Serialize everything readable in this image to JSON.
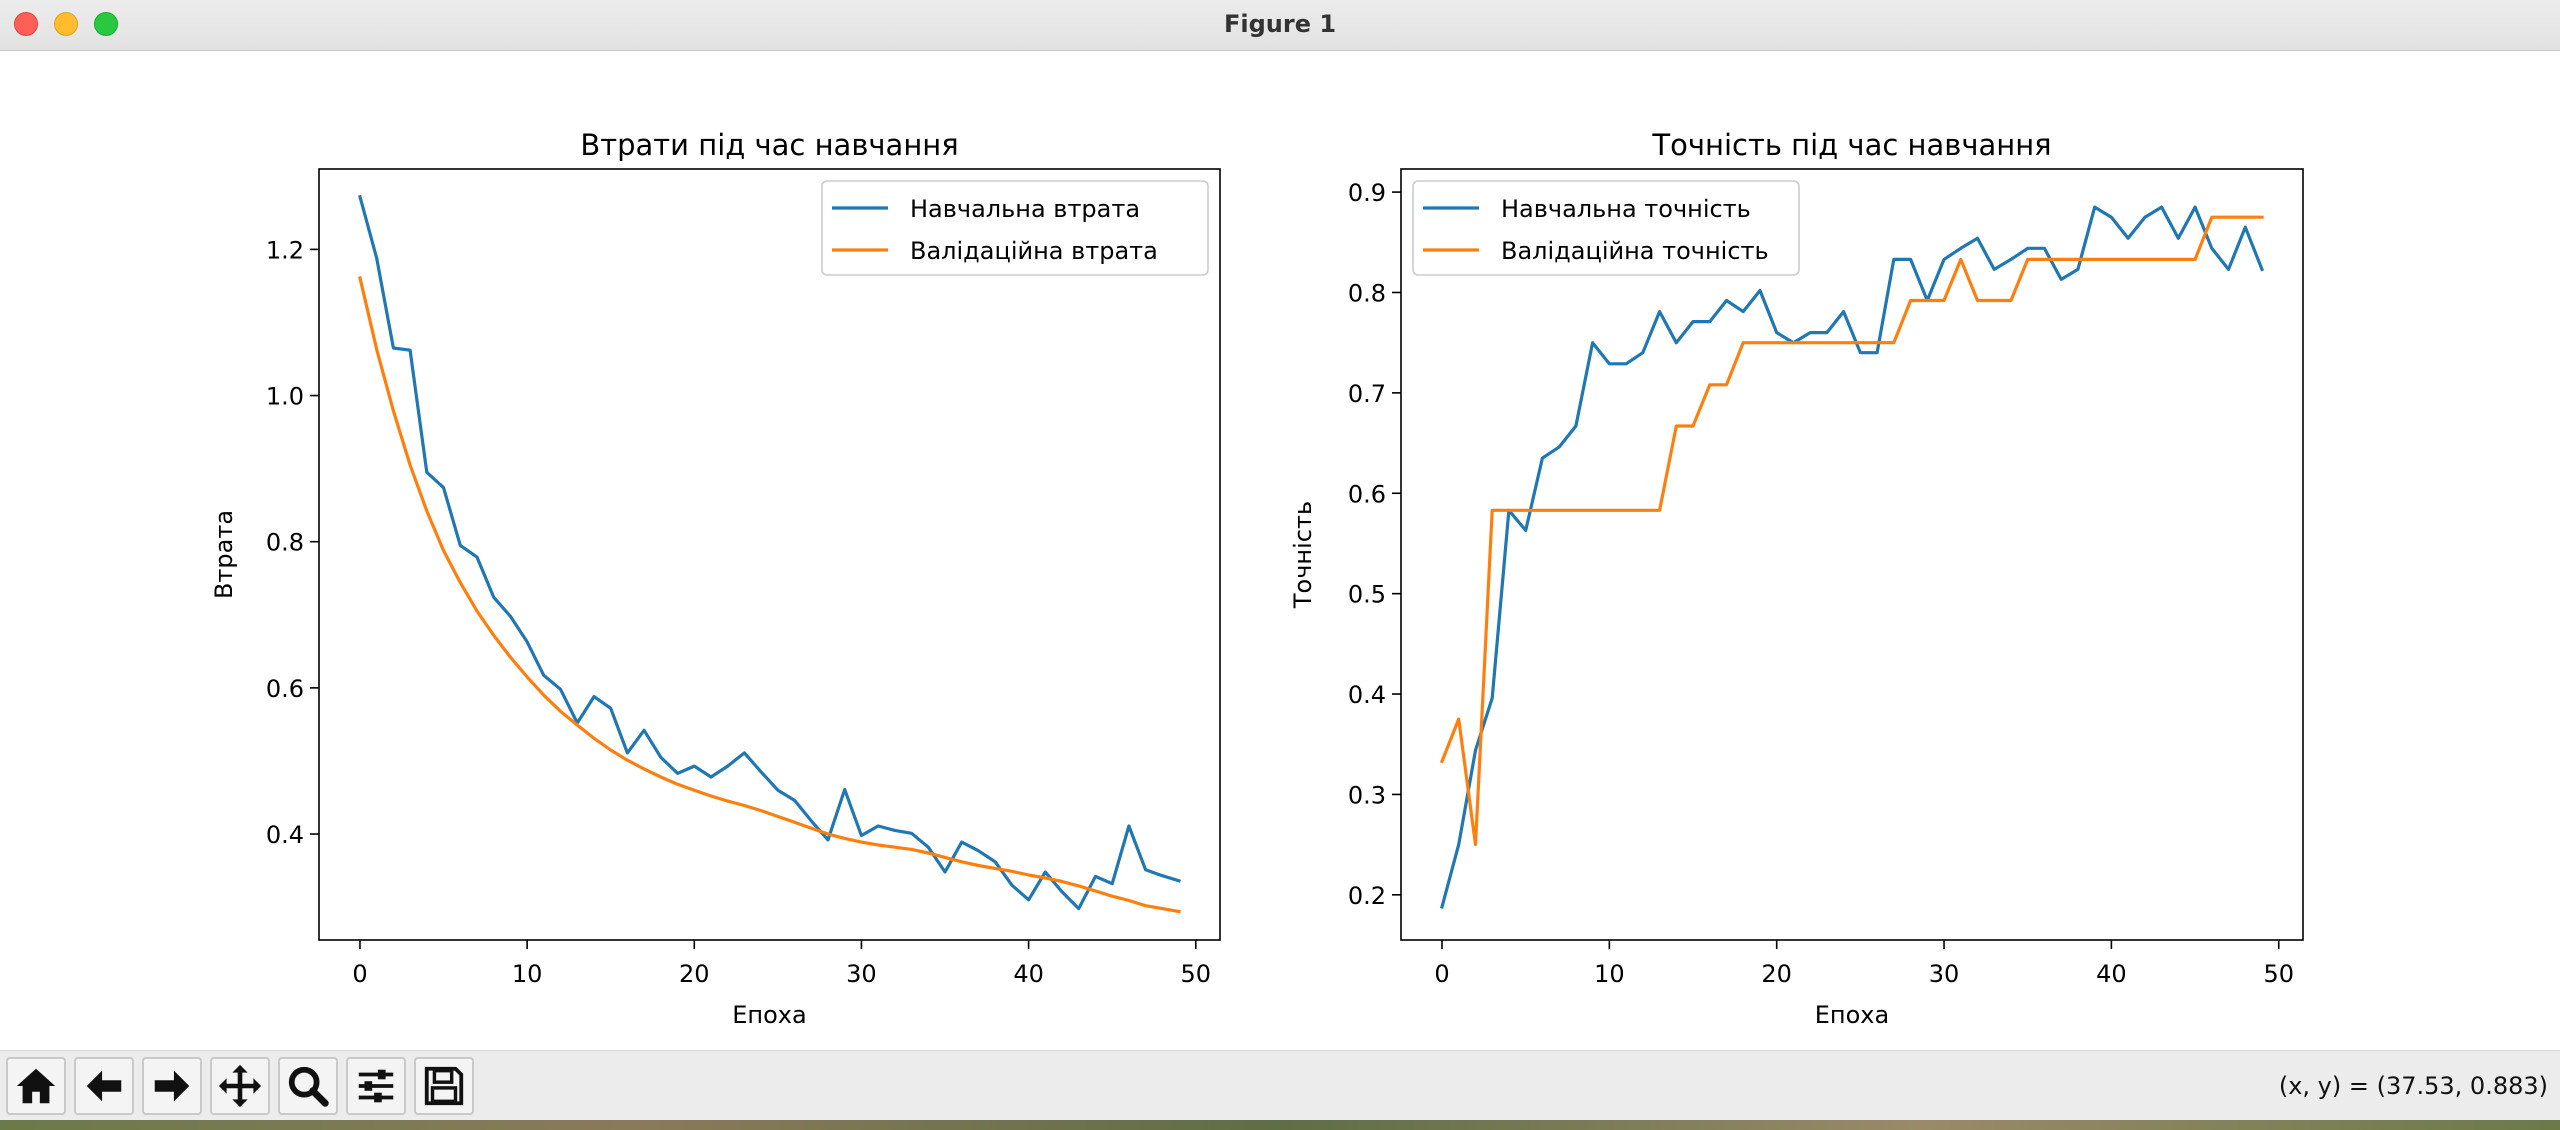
{
  "window": {
    "title": "Figure 1"
  },
  "toolbar": {
    "buttons": [
      {
        "name": "home-button",
        "icon": "home-icon"
      },
      {
        "name": "back-button",
        "icon": "arrow-left-icon"
      },
      {
        "name": "forward-button",
        "icon": "arrow-right-icon"
      },
      {
        "name": "pan-button",
        "icon": "move-icon"
      },
      {
        "name": "zoom-button",
        "icon": "magnifier-icon"
      },
      {
        "name": "configure-subplots-button",
        "icon": "sliders-icon"
      },
      {
        "name": "save-button",
        "icon": "floppy-disk-icon"
      }
    ],
    "coords": "(x, y) = (37.53, 0.883)"
  },
  "colors": {
    "train": "#1f77b4",
    "val": "#ff7f0e"
  },
  "chart_data": [
    {
      "type": "line",
      "title": "Втрати під час навчання",
      "xlabel": "Епоха",
      "ylabel": "Втрата",
      "xlim": [
        -2.45,
        51.45
      ],
      "ylim": [
        0.255,
        1.31
      ],
      "xticks": [
        0,
        10,
        20,
        30,
        40,
        50
      ],
      "yticks": [
        0.4,
        0.6,
        0.8,
        1.0,
        1.2
      ],
      "ytick_labels": [
        "0.4",
        "0.6",
        "0.8",
        "1.0",
        "1.2"
      ],
      "legend": "upper right",
      "grid": false,
      "x": [
        0,
        1,
        2,
        3,
        4,
        5,
        6,
        7,
        8,
        9,
        10,
        11,
        12,
        13,
        14,
        15,
        16,
        17,
        18,
        19,
        20,
        21,
        22,
        23,
        24,
        25,
        26,
        27,
        28,
        29,
        30,
        31,
        32,
        33,
        34,
        35,
        36,
        37,
        38,
        39,
        40,
        41,
        42,
        43,
        44,
        45,
        46,
        47,
        48,
        49
      ],
      "series": [
        {
          "name": "Навчальна втрата",
          "values": [
            1.272,
            1.188,
            1.065,
            1.062,
            0.895,
            0.874,
            0.795,
            0.779,
            0.724,
            0.698,
            0.663,
            0.617,
            0.598,
            0.552,
            0.588,
            0.572,
            0.511,
            0.542,
            0.505,
            0.483,
            0.493,
            0.478,
            0.493,
            0.511,
            0.485,
            0.46,
            0.446,
            0.418,
            0.392,
            0.461,
            0.398,
            0.411,
            0.405,
            0.401,
            0.382,
            0.348,
            0.389,
            0.377,
            0.362,
            0.33,
            0.31,
            0.348,
            0.321,
            0.298,
            0.342,
            0.332,
            0.411,
            0.351,
            0.343,
            0.336
          ]
        },
        {
          "name": "Валідаційна втрата",
          "values": [
            1.161,
            1.063,
            0.979,
            0.905,
            0.842,
            0.788,
            0.744,
            0.705,
            0.672,
            0.642,
            0.615,
            0.59,
            0.568,
            0.549,
            0.531,
            0.515,
            0.501,
            0.489,
            0.478,
            0.468,
            0.46,
            0.452,
            0.445,
            0.439,
            0.432,
            0.424,
            0.416,
            0.408,
            0.4,
            0.394,
            0.389,
            0.385,
            0.382,
            0.379,
            0.374,
            0.368,
            0.362,
            0.357,
            0.353,
            0.349,
            0.344,
            0.34,
            0.335,
            0.329,
            0.322,
            0.315,
            0.309,
            0.302,
            0.298,
            0.294
          ]
        }
      ]
    },
    {
      "type": "line",
      "title": "Точність під час навчання",
      "xlabel": "Епоха",
      "ylabel": "Точність",
      "xlim": [
        -2.45,
        51.45
      ],
      "ylim": [
        0.155,
        0.923
      ],
      "xticks": [
        0,
        10,
        20,
        30,
        40,
        50
      ],
      "yticks": [
        0.2,
        0.3,
        0.4,
        0.5,
        0.6,
        0.7,
        0.8,
        0.9
      ],
      "ytick_labels": [
        "0.2",
        "0.3",
        "0.4",
        "0.5",
        "0.6",
        "0.7",
        "0.8",
        "0.9"
      ],
      "legend": "upper left",
      "grid": false,
      "x": [
        0,
        1,
        2,
        3,
        4,
        5,
        6,
        7,
        8,
        9,
        10,
        11,
        12,
        13,
        14,
        15,
        16,
        17,
        18,
        19,
        20,
        21,
        22,
        23,
        24,
        25,
        26,
        27,
        28,
        29,
        30,
        31,
        32,
        33,
        34,
        35,
        36,
        37,
        38,
        39,
        40,
        41,
        42,
        43,
        44,
        45,
        46,
        47,
        48,
        49
      ],
      "series": [
        {
          "name": "Навчальна точність",
          "values": [
            0.188,
            0.25,
            0.344,
            0.396,
            0.583,
            0.563,
            0.635,
            0.646,
            0.667,
            0.75,
            0.729,
            0.729,
            0.74,
            0.781,
            0.75,
            0.771,
            0.771,
            0.792,
            0.781,
            0.802,
            0.76,
            0.75,
            0.76,
            0.76,
            0.781,
            0.74,
            0.74,
            0.833,
            0.833,
            0.792,
            0.833,
            0.844,
            0.854,
            0.823,
            0.833,
            0.844,
            0.844,
            0.813,
            0.823,
            0.885,
            0.875,
            0.854,
            0.875,
            0.885,
            0.854,
            0.885,
            0.844,
            0.823,
            0.865,
            0.823
          ]
        },
        {
          "name": "Валідаційна точність",
          "values": [
            0.333,
            0.375,
            0.25,
            0.583,
            0.583,
            0.583,
            0.583,
            0.583,
            0.583,
            0.583,
            0.583,
            0.583,
            0.583,
            0.583,
            0.667,
            0.667,
            0.708,
            0.708,
            0.75,
            0.75,
            0.75,
            0.75,
            0.75,
            0.75,
            0.75,
            0.75,
            0.75,
            0.75,
            0.792,
            0.792,
            0.792,
            0.833,
            0.792,
            0.792,
            0.792,
            0.833,
            0.833,
            0.833,
            0.833,
            0.833,
            0.833,
            0.833,
            0.833,
            0.833,
            0.833,
            0.833,
            0.875,
            0.875,
            0.875,
            0.875
          ]
        }
      ]
    }
  ]
}
